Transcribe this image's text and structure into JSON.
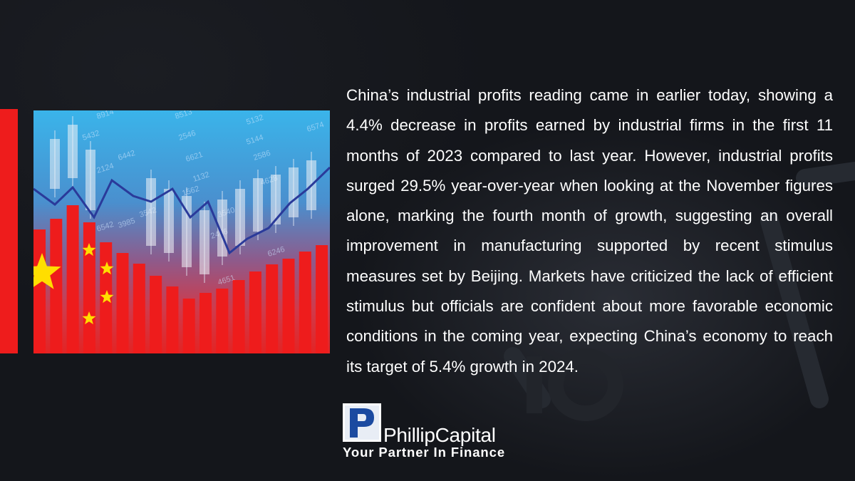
{
  "article": {
    "body": "China’s industrial profits reading came in earlier today, showing a 4.4% decrease in profits earned by industrial firms in the first 11 months of 2023 compared to last year. However, industrial profits surged 29.5% year-over-year when looking at the November figures alone, marking the fourth month of growth, suggesting an overall improvement in manufacturing supported by recent stimulus measures set by Beijing. Markets have criticized the lack of efficient stimulus but officials are confident about more favorable economic conditions in the coming year, expecting China’s economy to reach its target of 5.4% growth in 2024."
  },
  "brand": {
    "name": "PhillipCapital",
    "tagline": "Your Partner In Finance",
    "logo_letter": "P"
  },
  "colors": {
    "background": "#14161b",
    "accent_red": "#ee1c1c",
    "star_yellow": "#ffde00",
    "logo_blue": "#1b4aa0"
  },
  "hero_image": {
    "subject": "china-flag-bar-chart",
    "numbers": [
      "8914",
      "8513",
      "5132",
      "6574",
      "5432",
      "2546",
      "5144",
      "6442",
      "6621",
      "2586",
      "2124",
      "1132",
      "4628",
      "1562",
      "3542",
      "3540",
      "6542",
      "2456",
      "6246",
      "4651",
      "3985"
    ]
  }
}
